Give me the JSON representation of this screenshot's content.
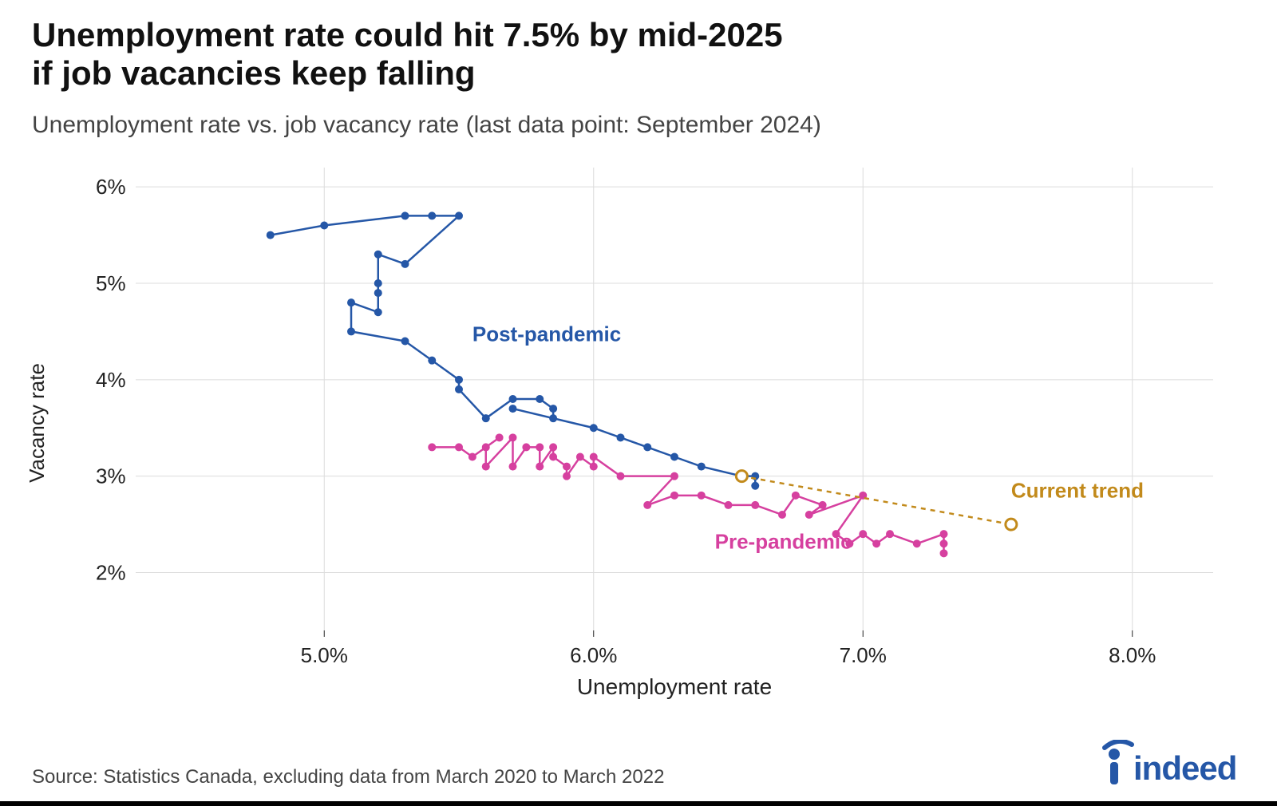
{
  "chart": {
    "type": "connected-scatter",
    "title_line1": "Unemployment rate could hit 7.5% by mid-2025",
    "title_line2": "if job vacancies keep falling",
    "title_fontsize": 42,
    "title_color": "#111111",
    "subtitle": "Unemployment rate vs. job vacancy rate (last data point: September 2024)",
    "subtitle_fontsize": 30,
    "subtitle_color": "#444444",
    "source": "Source: Statistics Canada, excluding data from March 2020 to March 2022",
    "source_fontsize": 24,
    "logo_text": "indeed",
    "logo_color": "#2557a7",
    "logo_fontsize": 46,
    "background_color": "#ffffff",
    "grid_color": "#dcdcdc",
    "axis_color": "#222222",
    "x": {
      "label": "Unemployment rate",
      "label_fontsize": 28,
      "min": 4.3,
      "max": 8.3,
      "ticks": [
        5.0,
        6.0,
        7.0,
        8.0
      ],
      "tick_labels": [
        "5.0%",
        "6.0%",
        "7.0%",
        "8.0%"
      ],
      "tick_fontsize": 26
    },
    "y": {
      "label": "Vacancy rate",
      "label_fontsize": 26,
      "min": 1.4,
      "max": 6.2,
      "ticks": [
        2,
        3,
        4,
        5,
        6
      ],
      "tick_labels": [
        "2%",
        "3%",
        "4%",
        "5%",
        "6%"
      ],
      "tick_fontsize": 26
    },
    "series": {
      "post_pandemic": {
        "label": "Post-pandemic",
        "label_pos": {
          "x": 5.55,
          "y": 4.4
        },
        "color": "#2557a7",
        "line_width": 2.5,
        "marker_size": 5,
        "points": [
          [
            4.8,
            5.5
          ],
          [
            5.0,
            5.6
          ],
          [
            5.3,
            5.7
          ],
          [
            5.4,
            5.7
          ],
          [
            5.5,
            5.7
          ],
          [
            5.3,
            5.2
          ],
          [
            5.2,
            5.3
          ],
          [
            5.2,
            5.0
          ],
          [
            5.2,
            4.9
          ],
          [
            5.2,
            4.7
          ],
          [
            5.1,
            4.8
          ],
          [
            5.1,
            4.5
          ],
          [
            5.3,
            4.4
          ],
          [
            5.4,
            4.2
          ],
          [
            5.5,
            4.0
          ],
          [
            5.5,
            3.9
          ],
          [
            5.6,
            3.6
          ],
          [
            5.7,
            3.8
          ],
          [
            5.8,
            3.8
          ],
          [
            5.85,
            3.7
          ],
          [
            5.85,
            3.6
          ],
          [
            5.7,
            3.7
          ],
          [
            6.0,
            3.5
          ],
          [
            6.1,
            3.4
          ],
          [
            6.2,
            3.3
          ],
          [
            6.3,
            3.2
          ],
          [
            6.4,
            3.1
          ],
          [
            6.55,
            3.0
          ],
          [
            6.6,
            3.0
          ],
          [
            6.6,
            2.9
          ]
        ]
      },
      "pre_pandemic": {
        "label": "Pre-pandemic",
        "label_pos": {
          "x": 6.45,
          "y": 2.25
        },
        "color": "#d6409f",
        "line_width": 2.5,
        "marker_size": 5,
        "points": [
          [
            7.3,
            2.2
          ],
          [
            7.3,
            2.3
          ],
          [
            7.3,
            2.4
          ],
          [
            7.2,
            2.3
          ],
          [
            7.1,
            2.4
          ],
          [
            7.05,
            2.3
          ],
          [
            7.0,
            2.4
          ],
          [
            6.95,
            2.3
          ],
          [
            6.9,
            2.4
          ],
          [
            7.0,
            2.8
          ],
          [
            6.8,
            2.6
          ],
          [
            6.85,
            2.7
          ],
          [
            6.75,
            2.8
          ],
          [
            6.7,
            2.6
          ],
          [
            6.6,
            2.7
          ],
          [
            6.5,
            2.7
          ],
          [
            6.4,
            2.8
          ],
          [
            6.3,
            2.8
          ],
          [
            6.2,
            2.7
          ],
          [
            6.3,
            3.0
          ],
          [
            6.1,
            3.0
          ],
          [
            6.0,
            3.2
          ],
          [
            6.0,
            3.1
          ],
          [
            5.95,
            3.2
          ],
          [
            5.9,
            3.0
          ],
          [
            5.9,
            3.1
          ],
          [
            5.85,
            3.2
          ],
          [
            5.85,
            3.3
          ],
          [
            5.8,
            3.1
          ],
          [
            5.8,
            3.3
          ],
          [
            5.75,
            3.3
          ],
          [
            5.7,
            3.1
          ],
          [
            5.7,
            3.4
          ],
          [
            5.6,
            3.1
          ],
          [
            5.6,
            3.3
          ],
          [
            5.65,
            3.4
          ],
          [
            5.55,
            3.2
          ],
          [
            5.5,
            3.3
          ],
          [
            5.4,
            3.3
          ]
        ]
      },
      "current_trend": {
        "label": "Current trend",
        "label_pos": {
          "x": 7.55,
          "y": 2.78
        },
        "color": "#c28a1b",
        "line_width": 2.5,
        "dash": "6,6",
        "start_marker": {
          "x": 6.55,
          "y": 3.0,
          "r": 7
        },
        "end_marker": {
          "x": 7.55,
          "y": 2.5,
          "r": 7
        },
        "points": [
          [
            6.55,
            3.0
          ],
          [
            7.55,
            2.5
          ]
        ]
      }
    }
  }
}
